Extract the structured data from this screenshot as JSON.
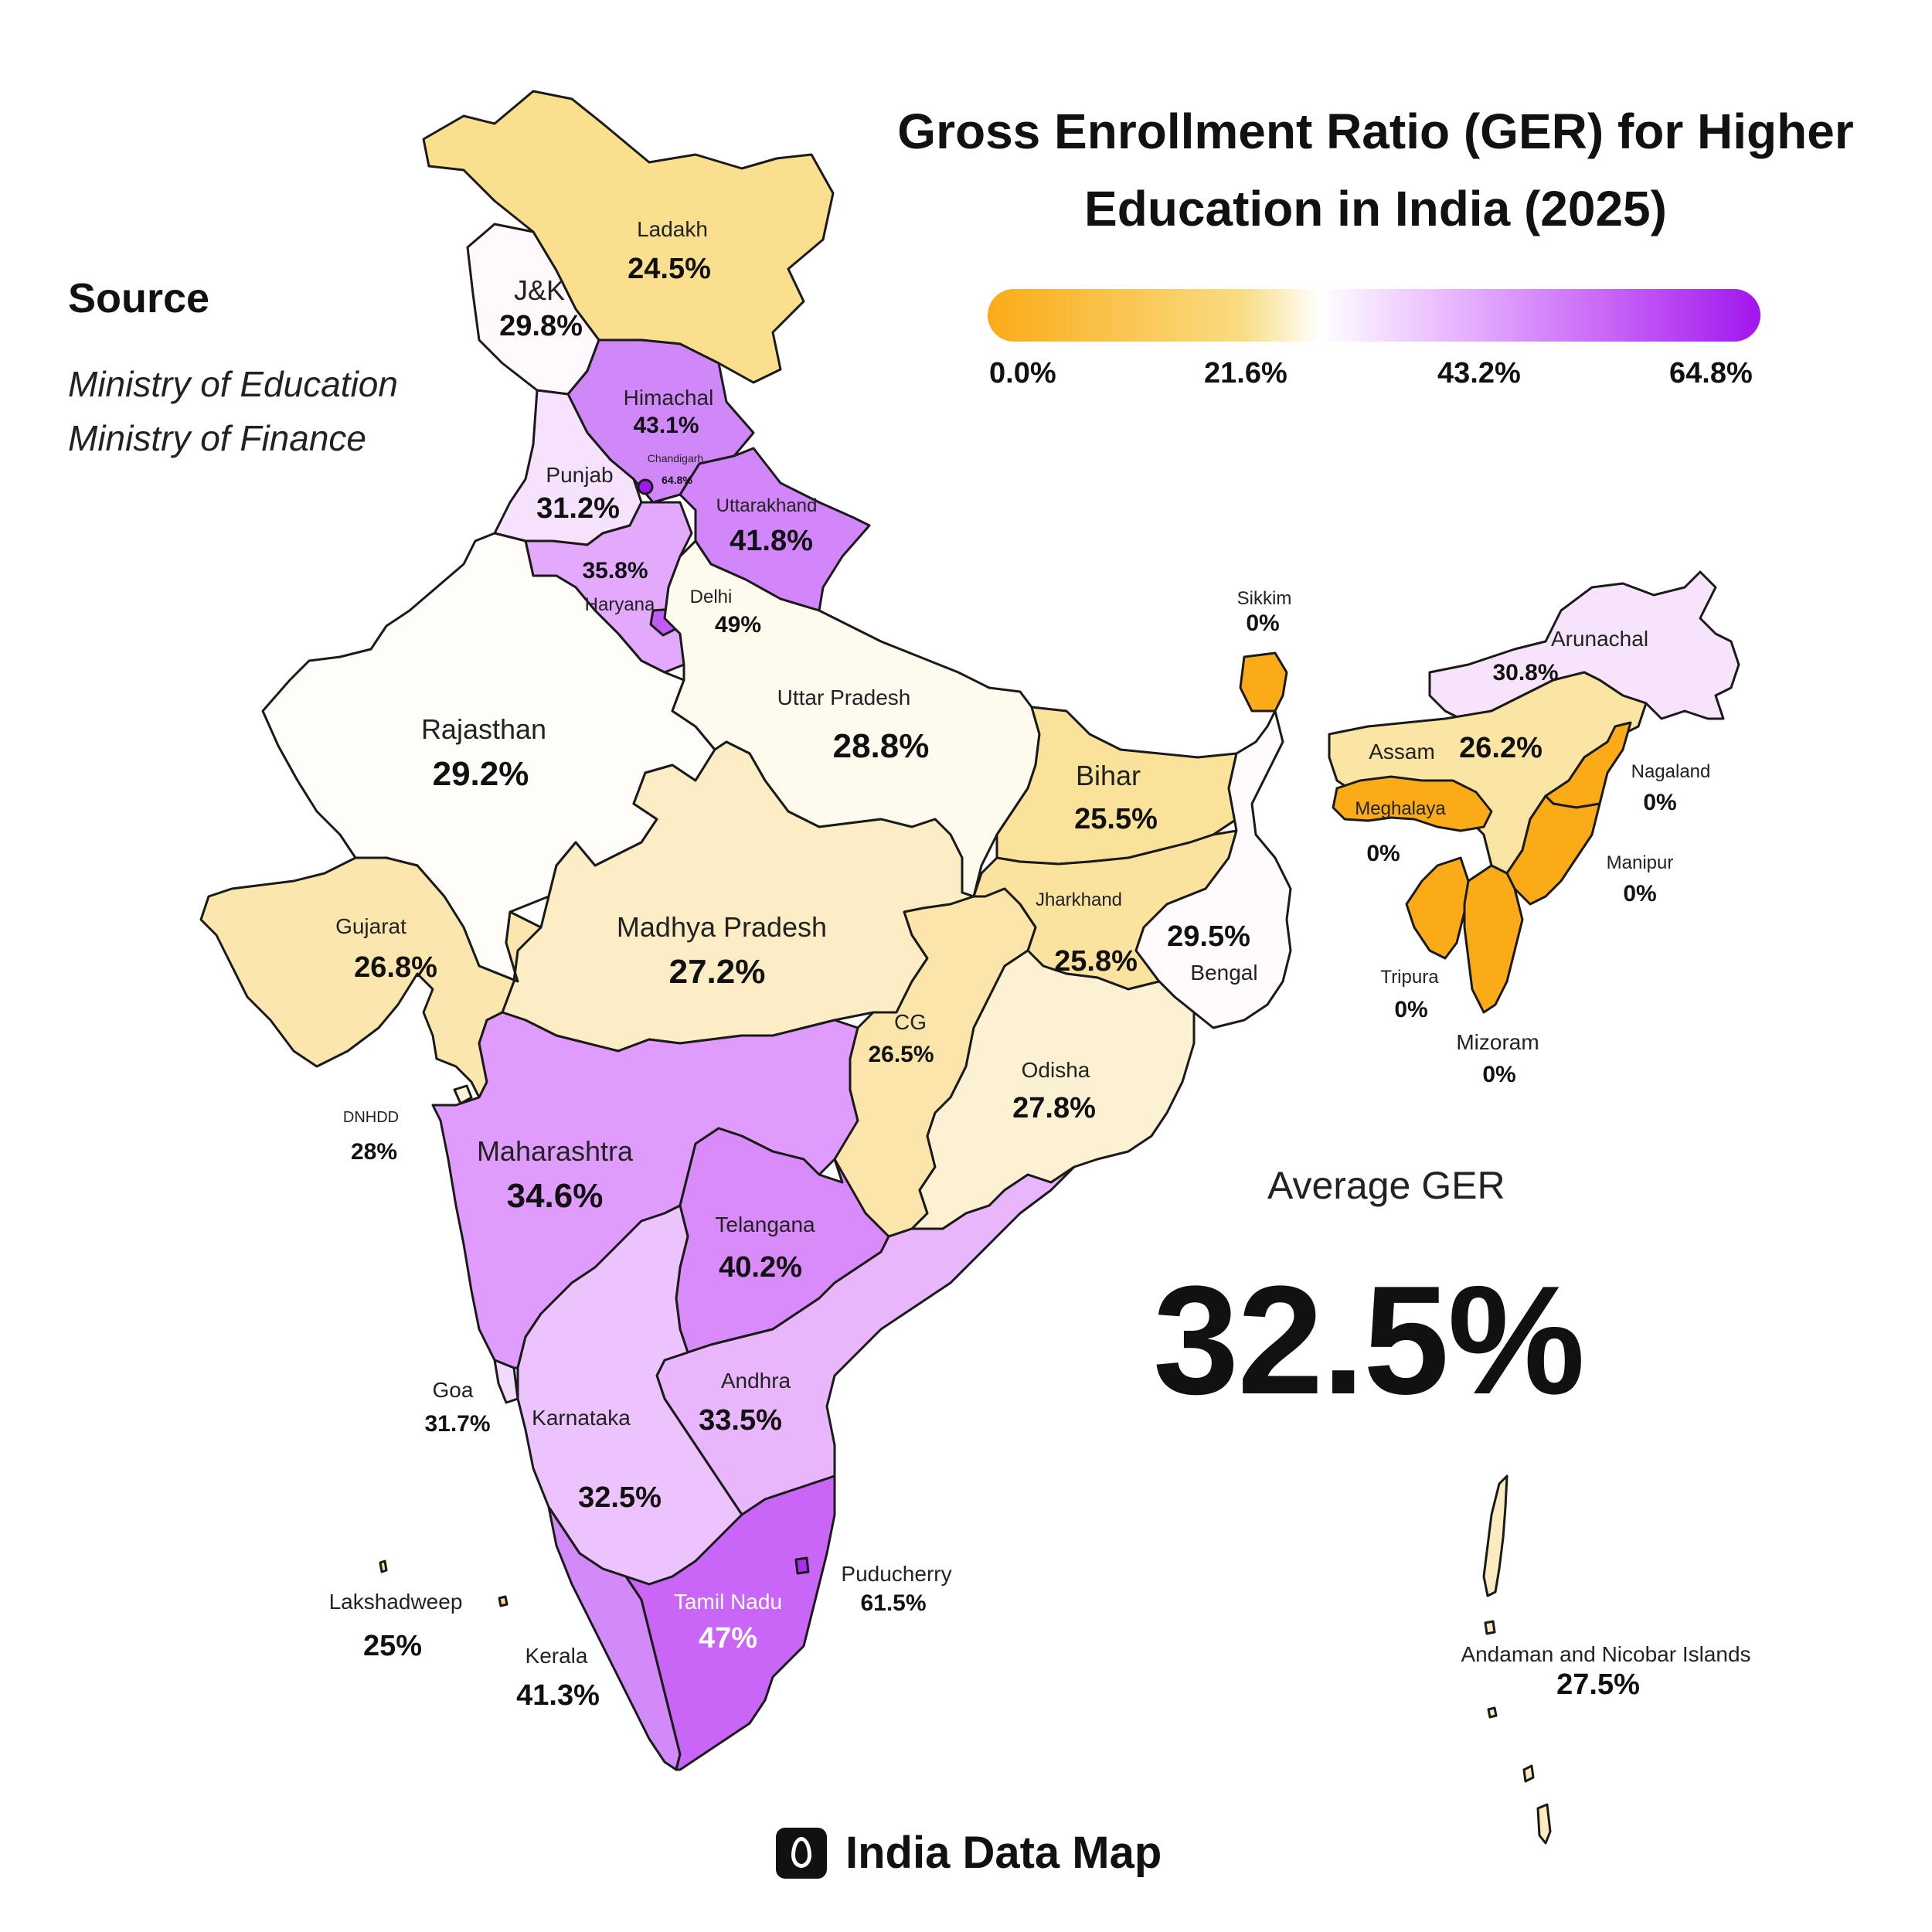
{
  "title_line1": "Gross Enrollment Ratio (GER) for Higher",
  "title_line2": "Education in India (2025)",
  "source": {
    "heading": "Source",
    "items": [
      "Ministry of Education",
      "Ministry of Finance"
    ]
  },
  "legend": {
    "ticks": [
      "0.0%",
      "21.6%",
      "43.2%",
      "64.8%"
    ],
    "colors": [
      "#fbab18",
      "#f9dc83",
      "#ffffff",
      "#e8b7ff",
      "#c966f7",
      "#a116ee"
    ]
  },
  "average": {
    "label": "Average GER",
    "value": "32.5%"
  },
  "brand": {
    "name": "India Data Map",
    "icon": "map-pin-icon"
  },
  "regions": {
    "ladakh": {
      "name": "Ladakh",
      "value": "24.5%",
      "color": "#f9df8e"
    },
    "jk": {
      "name": "J&K",
      "value": "29.8%",
      "color": "#fff8fd"
    },
    "himachal": {
      "name": "Himachal",
      "value": "43.1%",
      "color": "#d088f8"
    },
    "chandigarh": {
      "name": "Chandigarh",
      "value": "64.8%",
      "color": "#a116ee"
    },
    "punjab": {
      "name": "Punjab",
      "value": "31.2%",
      "color": "#f6e2fd"
    },
    "uttarakhand": {
      "name": "Uttarakhand",
      "value": "41.8%",
      "color": "#d386f9"
    },
    "haryana": {
      "name": "Haryana",
      "value": "35.8%",
      "color": "#e3a9fb"
    },
    "delhi": {
      "name": "Delhi",
      "value": "49%",
      "color": "#c15af6"
    },
    "rajasthan": {
      "name": "Rajasthan",
      "value": "29.2%",
      "color": "#fffdf9"
    },
    "uttar_pradesh": {
      "name": "Uttar Pradesh",
      "value": "28.8%",
      "color": "#fffaee"
    },
    "bihar": {
      "name": "Bihar",
      "value": "25.5%",
      "color": "#fae29a"
    },
    "sikkim": {
      "name": "Sikkim",
      "value": "0%",
      "color": "#fbab18"
    },
    "arunachal": {
      "name": "Arunachal",
      "value": "30.8%",
      "color": "#f7e3fc"
    },
    "assam": {
      "name": "Assam",
      "value": "26.2%",
      "color": "#fae5a5"
    },
    "meghalaya": {
      "name": "Meghalaya",
      "value": "0%",
      "color": "#fbab18"
    },
    "nagaland": {
      "name": "Nagaland",
      "value": "0%",
      "color": "#fbab18"
    },
    "manipur": {
      "name": "Manipur",
      "value": "0%",
      "color": "#fbab18"
    },
    "tripura": {
      "name": "Tripura",
      "value": "0%",
      "color": "#fbab18"
    },
    "mizoram": {
      "name": "Mizoram",
      "value": "0%",
      "color": "#fbab18"
    },
    "gujarat": {
      "name": "Gujarat",
      "value": "26.8%",
      "color": "#fbe6ad"
    },
    "madhya_pradesh": {
      "name": "Madhya Pradesh",
      "value": "27.2%",
      "color": "#fcedc4"
    },
    "jharkhand": {
      "name": "Jharkhand",
      "value": "25.8%",
      "color": "#fae29f"
    },
    "bengal": {
      "name": "Bengal",
      "value": "29.5%",
      "color": "#fffafc"
    },
    "cg": {
      "name": "CG",
      "value": "26.5%",
      "color": "#fbe5aa"
    },
    "odisha": {
      "name": "Odisha",
      "value": "27.8%",
      "color": "#fdf1d3"
    },
    "dnhdd": {
      "name": "DNHDD",
      "value": "28%",
      "color": "#fdf2d8"
    },
    "maharashtra": {
      "name": "Maharashtra",
      "value": "34.6%",
      "color": "#e09cfc"
    },
    "telangana": {
      "name": "Telangana",
      "value": "40.2%",
      "color": "#d98bf9"
    },
    "andhra": {
      "name": "Andhra",
      "value": "33.5%",
      "color": "#e9b6fc"
    },
    "karnataka": {
      "name": "Karnataka",
      "value": "32.5%",
      "color": "#ecc3fc"
    },
    "goa": {
      "name": "Goa",
      "value": "31.7%",
      "color": "#f3d9fc"
    },
    "kerala": {
      "name": "Kerala",
      "value": "41.3%",
      "color": "#d28af9"
    },
    "tamil_nadu": {
      "name": "Tamil Nadu",
      "value": "47%",
      "color": "#c966f7"
    },
    "puducherry": {
      "name": "Puducherry",
      "value": "61.5%",
      "color": "#a82ef0"
    },
    "lakshadweep": {
      "name": "Lakshadweep",
      "value": "25%",
      "color": "#f9df8e"
    },
    "andaman": {
      "name": "Andaman and Nicobar Islands",
      "value": "27.5%",
      "color": "#fcebbe"
    }
  }
}
